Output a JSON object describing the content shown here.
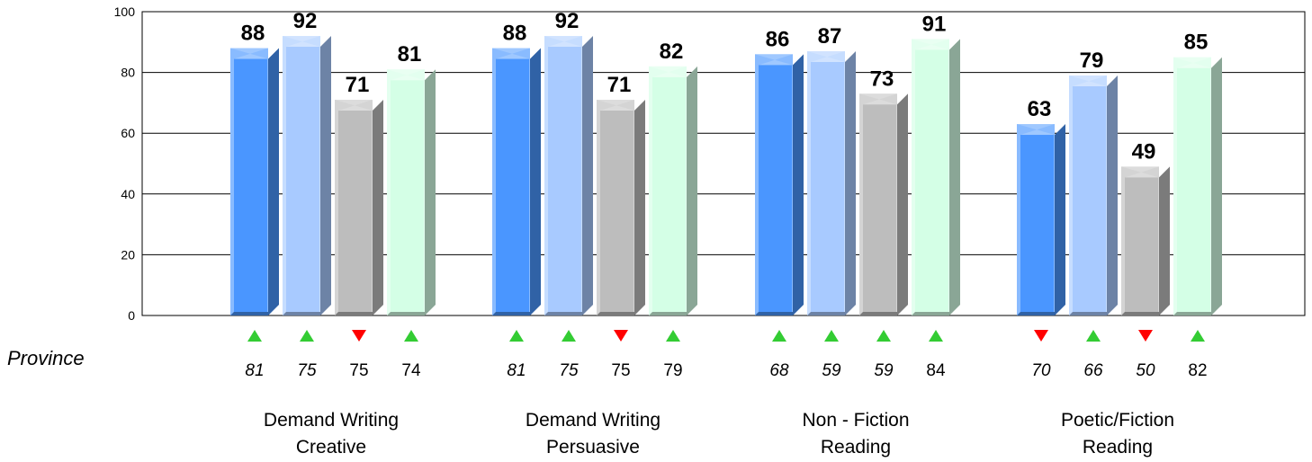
{
  "chart_data": {
    "type": "bar",
    "ylim": [
      0,
      100
    ],
    "yticks": [
      "0",
      "20",
      "40",
      "60",
      "80",
      "100"
    ],
    "grid": true,
    "categories": [
      [
        "Demand Writing",
        "Creative"
      ],
      [
        "Demand Writing",
        "Persuasive"
      ],
      [
        "Non - Fiction",
        "Reading"
      ],
      [
        "Poetic/Fiction",
        "Reading"
      ]
    ],
    "series_colors": [
      "#4a96ff",
      "#a8caff",
      "#bdbdbd",
      "#d4ffe6"
    ],
    "values": [
      [
        88,
        92,
        71,
        81
      ],
      [
        88,
        92,
        71,
        82
      ],
      [
        86,
        87,
        73,
        91
      ],
      [
        63,
        79,
        49,
        85
      ]
    ],
    "comparison_label": "Province",
    "comparison_values": [
      [
        "81",
        "75",
        "75",
        "74"
      ],
      [
        "81",
        "75",
        "75",
        "79"
      ],
      [
        "68",
        "59",
        "59",
        "84"
      ],
      [
        "70",
        "66",
        "50",
        "82"
      ]
    ],
    "comparison_italic": [
      [
        true,
        true,
        false,
        false
      ],
      [
        true,
        true,
        false,
        false
      ],
      [
        true,
        true,
        true,
        false
      ],
      [
        true,
        true,
        true,
        false
      ]
    ],
    "arrows": [
      [
        "up",
        "up",
        "down",
        "up"
      ],
      [
        "up",
        "up",
        "down",
        "up"
      ],
      [
        "up",
        "up",
        "up",
        "up"
      ],
      [
        "down",
        "up",
        "down",
        "up"
      ]
    ],
    "arrow_colors": {
      "up": "#33cc33",
      "down": "#ff0000"
    }
  }
}
